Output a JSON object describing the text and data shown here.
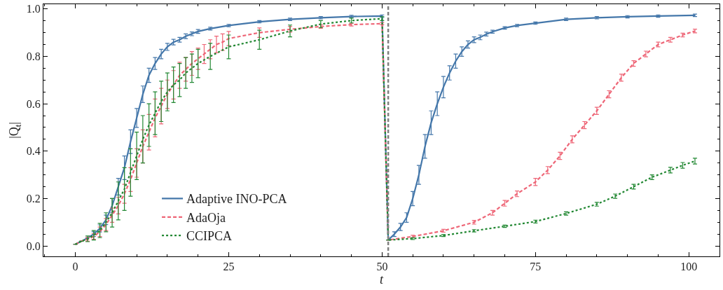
{
  "chart_data": {
    "type": "line",
    "xlabel": "t",
    "ylabel": "|Q$_{t}$|",
    "xlim": [
      -5.2,
      105
    ],
    "ylim": [
      -0.044,
      1.02
    ],
    "xticks": [
      0,
      25,
      50,
      75,
      100
    ],
    "yticks": [
      {
        "value": 0,
        "label": "0.0"
      },
      {
        "value": 0.2,
        "label": "0.2"
      },
      {
        "value": 0.4,
        "label": "0.4"
      },
      {
        "value": 0.6,
        "label": "0.6"
      },
      {
        "value": 0.8,
        "label": "0.8"
      },
      {
        "value": 1,
        "label": "1.0"
      }
    ],
    "legend": "bottom left",
    "ref_lines": [
      {
        "axis": "x",
        "value": 51,
        "color": "#808080",
        "line_style": "dashed"
      }
    ],
    "series": [
      {
        "name": "Adaptive INO-PCA",
        "color": "#4477aa",
        "line_style": "solid",
        "x": [
          0,
          1,
          2,
          3,
          4,
          5,
          6,
          7,
          8,
          9,
          10,
          11,
          12,
          13,
          14,
          15,
          16,
          17,
          18,
          19,
          20,
          22,
          25,
          30,
          35,
          40,
          45,
          50,
          51,
          52,
          53,
          54,
          55,
          56,
          57,
          58,
          59,
          60,
          61,
          62,
          63,
          64,
          65,
          66,
          67,
          68,
          70,
          72,
          75,
          80,
          85,
          90,
          95,
          101
        ],
        "values": [
          0.007,
          0.02,
          0.034,
          0.05,
          0.074,
          0.11,
          0.17,
          0.25,
          0.33,
          0.44,
          0.54,
          0.64,
          0.72,
          0.77,
          0.81,
          0.84,
          0.86,
          0.87,
          0.885,
          0.895,
          0.905,
          0.917,
          0.93,
          0.946,
          0.956,
          0.963,
          0.968,
          0.97,
          0.025,
          0.05,
          0.08,
          0.12,
          0.2,
          0.3,
          0.42,
          0.52,
          0.6,
          0.67,
          0.73,
          0.78,
          0.82,
          0.85,
          0.87,
          0.88,
          0.894,
          0.904,
          0.92,
          0.93,
          0.94,
          0.956,
          0.963,
          0.967,
          0.97,
          0.973
        ],
        "errors": [
          null,
          null,
          null,
          0.01,
          0.015,
          0.02,
          0.03,
          0.035,
          0.05,
          0.05,
          0.04,
          0.035,
          0.03,
          0.025,
          0.02,
          0.015,
          0.012,
          0.01,
          0.01,
          0.008,
          0.008,
          0.006,
          0.005,
          0.005,
          0.005,
          0.005,
          0.005,
          0.005,
          null,
          0.01,
          0.015,
          0.02,
          0.03,
          0.04,
          0.05,
          0.05,
          0.05,
          0.045,
          0.03,
          0.03,
          0.02,
          0.015,
          0.012,
          0.01,
          0.008,
          0.006,
          0.005,
          0.005,
          0.005,
          0.005,
          0.005,
          0.005,
          0.005,
          0.005
        ]
      },
      {
        "name": "AdaOja",
        "color": "#ee6677",
        "line_style": "dashed",
        "x": [
          0,
          1,
          2,
          3,
          4,
          5,
          6,
          7,
          8,
          9,
          10,
          11,
          12,
          13,
          14,
          15,
          16,
          17,
          18,
          19,
          20,
          21,
          22,
          23,
          24,
          25,
          30,
          35,
          40,
          45,
          50,
          51,
          55,
          60,
          65,
          68,
          70,
          72,
          75,
          77,
          79,
          81,
          83,
          85,
          87,
          89,
          91,
          93,
          95,
          97,
          99,
          101
        ],
        "values": [
          0.007,
          0.02,
          0.028,
          0.04,
          0.06,
          0.09,
          0.13,
          0.17,
          0.22,
          0.28,
          0.35,
          0.42,
          0.48,
          0.54,
          0.59,
          0.64,
          0.68,
          0.72,
          0.745,
          0.77,
          0.79,
          0.81,
          0.83,
          0.85,
          0.86,
          0.875,
          0.9,
          0.914,
          0.926,
          0.934,
          0.938,
          0.025,
          0.04,
          0.064,
          0.1,
          0.14,
          0.18,
          0.22,
          0.27,
          0.32,
          0.38,
          0.45,
          0.51,
          0.57,
          0.64,
          0.71,
          0.77,
          0.81,
          0.85,
          0.87,
          0.89,
          0.907
        ],
        "errors": [
          null,
          null,
          0.008,
          0.012,
          0.02,
          0.025,
          0.03,
          0.035,
          0.04,
          0.05,
          0.06,
          0.07,
          0.075,
          0.08,
          0.075,
          0.06,
          0.06,
          0.055,
          0.05,
          0.05,
          0.045,
          0.04,
          0.04,
          0.035,
          0.035,
          0.03,
          0.02,
          0.012,
          0.008,
          0.006,
          0.005,
          null,
          0.005,
          0.006,
          0.008,
          0.01,
          0.012,
          0.012,
          0.015,
          0.015,
          0.015,
          0.015,
          0.015,
          0.015,
          0.015,
          0.015,
          0.012,
          0.012,
          0.01,
          0.01,
          0.008,
          0.008
        ]
      },
      {
        "name": "CCIPCA",
        "color": "#228833",
        "line_style": "dotted",
        "x": [
          0,
          1,
          2,
          3,
          4,
          5,
          6,
          7,
          8,
          9,
          10,
          11,
          12,
          13,
          14,
          15,
          16,
          17,
          18,
          19,
          20,
          22,
          25,
          30,
          35,
          40,
          45,
          50,
          51,
          55,
          60,
          65,
          70,
          75,
          80,
          85,
          88,
          91,
          94,
          97,
          99,
          101
        ],
        "values": [
          0.007,
          0.02,
          0.03,
          0.045,
          0.065,
          0.1,
          0.14,
          0.19,
          0.24,
          0.31,
          0.38,
          0.45,
          0.51,
          0.56,
          0.61,
          0.65,
          0.68,
          0.7,
          0.73,
          0.75,
          0.77,
          0.8,
          0.84,
          0.87,
          0.907,
          0.936,
          0.951,
          0.959,
          0.025,
          0.031,
          0.044,
          0.064,
          0.083,
          0.103,
          0.137,
          0.176,
          0.21,
          0.25,
          0.29,
          0.32,
          0.34,
          0.358
        ],
        "errors": [
          null,
          null,
          0.012,
          0.02,
          0.03,
          0.04,
          0.06,
          0.08,
          0.09,
          0.1,
          0.1,
          0.1,
          0.09,
          0.09,
          0.085,
          0.08,
          0.075,
          0.07,
          0.065,
          0.06,
          0.06,
          0.055,
          0.05,
          0.04,
          0.025,
          0.015,
          0.01,
          0.008,
          null,
          0.004,
          0.004,
          0.005,
          0.005,
          0.006,
          0.007,
          0.008,
          0.009,
          0.01,
          0.01,
          0.012,
          0.012,
          0.012
        ]
      }
    ]
  }
}
